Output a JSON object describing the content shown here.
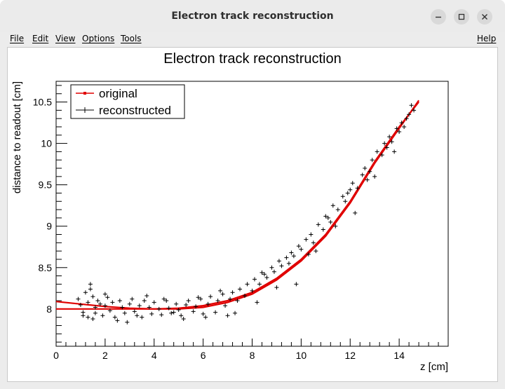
{
  "window": {
    "title": "Electron track reconstruction",
    "controls": [
      "minimize-icon",
      "maximize-icon",
      "close-icon"
    ]
  },
  "menubar": {
    "items": [
      "File",
      "Edit",
      "View",
      "Options",
      "Tools"
    ],
    "help": "Help"
  },
  "chart_data": {
    "type": "scatter",
    "title": "Electron track reconstruction",
    "xlabel": "z [cm]",
    "ylabel": "distance to readout [cm]",
    "xlim": [
      0,
      16
    ],
    "ylim": [
      7.55,
      10.75
    ],
    "x_ticks": [
      0,
      2,
      4,
      6,
      8,
      10,
      12,
      14
    ],
    "y_ticks": [
      8,
      8.5,
      9,
      9.5,
      10,
      10.5
    ],
    "x_tick_labels": [
      "0",
      "2",
      "4",
      "6",
      "8",
      "10",
      "12",
      "14"
    ],
    "y_tick_labels": [
      "8",
      "8.5",
      "9",
      "9.5",
      "10",
      "10.5"
    ],
    "grid": false,
    "legend": {
      "placement": "top-left",
      "entries": [
        "original",
        "reconstructed"
      ]
    },
    "series": [
      {
        "name": "original",
        "style": "line",
        "color": "#e00000",
        "x": [
          0,
          1,
          2,
          3,
          4,
          5,
          6,
          7,
          8,
          9,
          10,
          11,
          12,
          13,
          14,
          14.8
        ],
        "y": [
          8.0,
          8.0,
          8.0,
          8.0,
          8.0,
          8.01,
          8.04,
          8.1,
          8.2,
          8.37,
          8.6,
          8.9,
          9.3,
          9.78,
          10.2,
          10.5
        ]
      },
      {
        "name": "",
        "style": "line",
        "color": "#e00000",
        "x": [
          0,
          1,
          2,
          3,
          4,
          5,
          6,
          7,
          8,
          9,
          10,
          11,
          12,
          13,
          14,
          14.8
        ],
        "y": [
          8.09,
          8.06,
          8.03,
          8.01,
          8.0,
          8.0,
          8.02,
          8.08,
          8.18,
          8.35,
          8.58,
          8.88,
          9.28,
          9.76,
          10.18,
          10.52
        ]
      },
      {
        "name": "reconstructed",
        "style": "markers",
        "marker": "+",
        "color": "#000000",
        "x": [
          0.9,
          1.0,
          1.1,
          1.2,
          1.3,
          1.3,
          1.4,
          1.5,
          1.6,
          1.6,
          1.7,
          1.8,
          1.9,
          2.0,
          2.1,
          2.2,
          2.3,
          2.5,
          2.6,
          2.7,
          2.8,
          3.0,
          3.1,
          3.2,
          3.4,
          3.5,
          3.6,
          3.8,
          3.9,
          4.0,
          4.2,
          4.3,
          4.4,
          4.6,
          4.7,
          4.9,
          5.0,
          5.1,
          5.3,
          5.4,
          5.6,
          5.7,
          5.9,
          6.0,
          6.2,
          6.3,
          6.5,
          6.6,
          6.8,
          6.9,
          7.1,
          7.2,
          7.4,
          7.5,
          7.7,
          7.8,
          8.0,
          8.1,
          8.3,
          8.4,
          8.6,
          8.8,
          8.9,
          9.1,
          9.2,
          9.4,
          9.6,
          9.7,
          9.9,
          10.0,
          10.2,
          10.4,
          10.5,
          10.7,
          10.9,
          11.0,
          11.2,
          11.3,
          11.5,
          11.7,
          11.8,
          12.0,
          12.1,
          12.3,
          12.5,
          12.6,
          12.8,
          12.9,
          13.1,
          13.3,
          13.4,
          13.6,
          13.7,
          13.9,
          14.1,
          14.2,
          14.4,
          14.5,
          14.6,
          1.1,
          1.5,
          2.0,
          2.9,
          3.7,
          4.5,
          5.2,
          6.1,
          6.7,
          7.3,
          8.2,
          9.0,
          9.8,
          10.6,
          11.4,
          12.2,
          13.0,
          13.8,
          14.3,
          1.4,
          2.4,
          3.3,
          4.8,
          5.8,
          7.0,
          8.5,
          9.5,
          10.3,
          11.1,
          11.9,
          12.7,
          13.5,
          14.0
        ],
        "y": [
          8.12,
          8.05,
          7.96,
          8.2,
          8.08,
          7.9,
          8.3,
          8.15,
          8.02,
          7.95,
          8.1,
          8.06,
          7.92,
          8.04,
          8.14,
          7.98,
          8.08,
          7.86,
          8.1,
          8.02,
          7.95,
          8.06,
          8.12,
          7.97,
          8.04,
          7.9,
          8.1,
          8.02,
          7.94,
          8.08,
          8.0,
          7.93,
          8.12,
          8.01,
          7.95,
          8.06,
          7.99,
          7.92,
          8.05,
          8.1,
          7.97,
          8.03,
          8.12,
          7.94,
          8.06,
          8.15,
          7.96,
          8.1,
          8.18,
          8.04,
          8.12,
          8.2,
          8.1,
          8.24,
          8.16,
          8.3,
          8.22,
          8.36,
          8.3,
          8.44,
          8.38,
          8.5,
          8.45,
          8.58,
          8.52,
          8.62,
          8.68,
          8.64,
          8.76,
          8.72,
          8.84,
          8.9,
          8.8,
          9.02,
          8.96,
          9.12,
          9.05,
          9.25,
          9.2,
          9.36,
          9.3,
          9.44,
          9.52,
          9.46,
          9.62,
          9.7,
          9.66,
          9.8,
          9.9,
          9.86,
          10.0,
          10.08,
          10.02,
          10.18,
          10.25,
          10.2,
          10.35,
          10.46,
          10.4,
          7.92,
          7.88,
          8.18,
          7.84,
          8.16,
          8.1,
          7.88,
          7.9,
          8.22,
          7.95,
          8.08,
          8.26,
          8.3,
          8.7,
          9.0,
          9.16,
          9.6,
          9.9,
          10.3,
          8.24,
          7.9,
          7.92,
          7.96,
          8.14,
          7.92,
          8.42,
          8.55,
          8.66,
          9.1,
          9.4,
          9.56,
          9.95,
          10.14
        ]
      }
    ]
  }
}
